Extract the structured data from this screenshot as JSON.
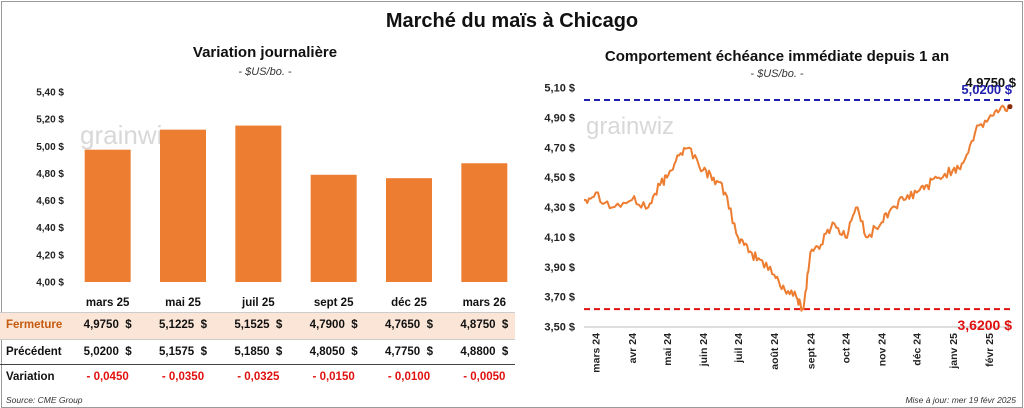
{
  "title": "Marché du maïs à Chicago",
  "source": "Source: CME Group",
  "updated": "Mise à jour: mer 19 févr 2025",
  "watermark": "grainwiz",
  "colors": {
    "bar": "#ed7d31",
    "line": "#ed7d31",
    "blue": "#2020b0",
    "red": "#e01010",
    "highlight": "#fbe5d6"
  },
  "left": {
    "title": "Variation journalière",
    "unit": "- $US/bo. -",
    "yticks": [
      "5,40 $",
      "5,20 $",
      "5,00 $",
      "4,80 $",
      "4,60 $",
      "4,40 $",
      "4,20 $",
      "4,00 $"
    ],
    "table": {
      "labels": [
        "Fermeture",
        "Précédent",
        "Variation"
      ],
      "fermeture": [
        "4,9750  $",
        "5,1225  $",
        "5,1525  $",
        "4,7900  $",
        "4,7650  $",
        "4,8750  $"
      ],
      "precedent": [
        "5,0200  $",
        "5,1575  $",
        "5,1850  $",
        "4,8050  $",
        "4,7750  $",
        "4,8800  $"
      ],
      "variation": [
        "- 0,0450",
        "- 0,0350",
        "- 0,0325",
        "- 0,0150",
        "- 0,0100",
        "- 0,0050"
      ]
    }
  },
  "right": {
    "title": "Comportement  échéance immédiate depuis 1 an",
    "unit": "- $US/bo. -",
    "yticks": [
      "5,10 $",
      "4,90 $",
      "4,70 $",
      "4,50 $",
      "4,30 $",
      "4,10 $",
      "3,90 $",
      "3,70 $",
      "3,50 $"
    ],
    "xticks": [
      "mars 24",
      "avr 24",
      "mai 24",
      "juin 24",
      "juil 24",
      "août 24",
      "sept 24",
      "oct 24",
      "nov 24",
      "déc 24",
      "janv 25",
      "févr 25"
    ],
    "max_label": "5,0200 $",
    "min_label": "3,6200 $",
    "last_label": "4,9750 $"
  },
  "chart_data": [
    {
      "type": "bar",
      "title": "Variation journalière",
      "categories": [
        "mars 25",
        "mai 25",
        "juil 25",
        "sept 25",
        "déc 25",
        "mars 26"
      ],
      "values": [
        4.975,
        5.1225,
        5.1525,
        4.79,
        4.765,
        4.875
      ],
      "ylim": [
        4.0,
        5.4
      ]
    },
    {
      "type": "line",
      "title": "Comportement  échéance immédiate depuis 1 an",
      "ylim": [
        3.5,
        5.1
      ],
      "x": [
        "2024-02-20",
        "2024-03-01",
        "2024-03-15",
        "2024-04-01",
        "2024-04-15",
        "2024-04-25",
        "2024-05-01",
        "2024-05-10",
        "2024-05-20",
        "2024-06-01",
        "2024-06-10",
        "2024-06-20",
        "2024-07-01",
        "2024-07-10",
        "2024-07-20",
        "2024-08-01",
        "2024-08-10",
        "2024-08-20",
        "2024-08-26",
        "2024-09-01",
        "2024-09-10",
        "2024-09-20",
        "2024-10-01",
        "2024-10-10",
        "2024-10-20",
        "2024-11-01",
        "2024-11-10",
        "2024-11-20",
        "2024-12-01",
        "2024-12-10",
        "2024-12-20",
        "2025-01-01",
        "2025-01-10",
        "2025-01-20",
        "2025-02-01",
        "2025-02-10",
        "2025-02-19"
      ],
      "y": [
        4.35,
        4.4,
        4.3,
        4.35,
        4.3,
        4.45,
        4.5,
        4.65,
        4.7,
        4.55,
        4.5,
        4.4,
        4.1,
        4.0,
        3.95,
        3.85,
        3.75,
        3.7,
        3.62,
        4.0,
        4.05,
        4.2,
        4.1,
        4.3,
        4.1,
        4.2,
        4.3,
        4.35,
        4.4,
        4.45,
        4.5,
        4.55,
        4.6,
        4.8,
        4.9,
        4.95,
        4.975
      ],
      "hlines": [
        {
          "value": 5.02,
          "label": "5,0200 $"
        },
        {
          "value": 3.62,
          "label": "3,6200 $"
        }
      ]
    }
  ]
}
